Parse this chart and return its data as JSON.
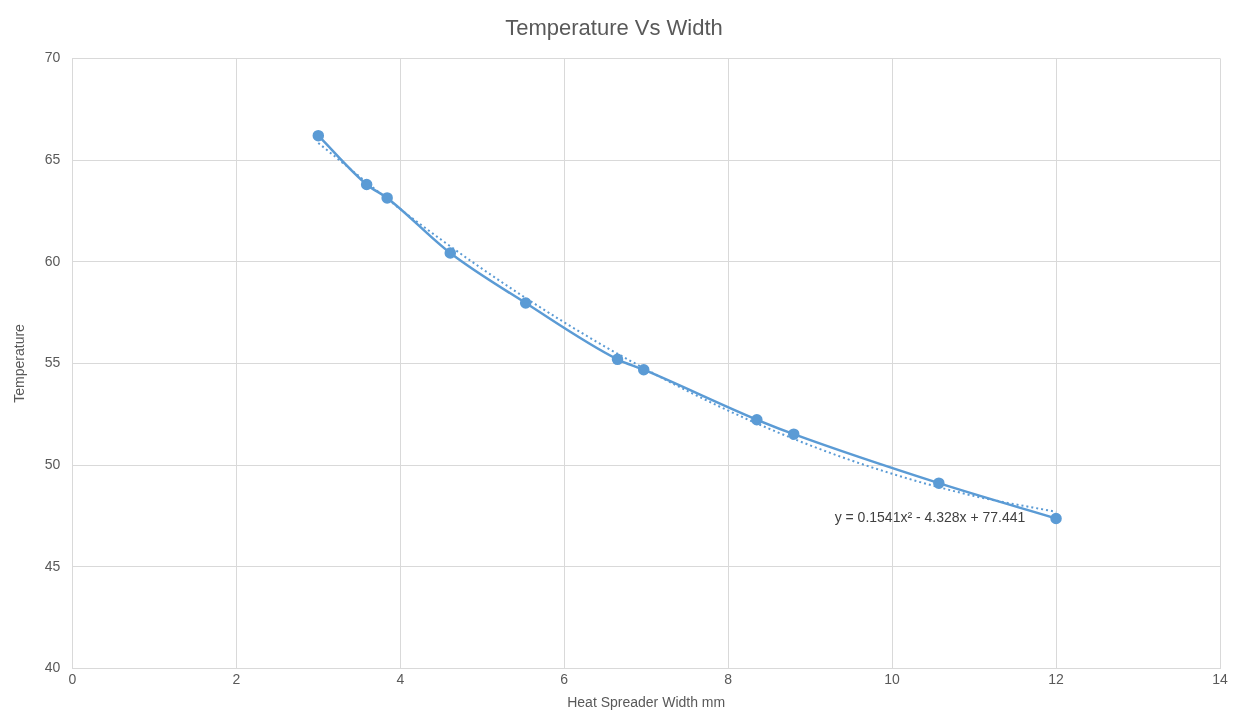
{
  "chart_data": {
    "type": "line",
    "title": "Temperature Vs Width",
    "xlabel": "Heat Spreader Width mm",
    "ylabel": "Temperature",
    "xlim": [
      0,
      14
    ],
    "xticks": [
      0,
      2,
      4,
      6,
      8,
      10,
      12,
      14
    ],
    "ylim": [
      40,
      70
    ],
    "yticks": [
      40,
      45,
      50,
      55,
      60,
      65,
      70
    ],
    "grid": true,
    "legend": false,
    "series": [
      {
        "color": "#5b9bd5",
        "marker": "circle",
        "line_style": "solid",
        "x": [
          3,
          3.59,
          3.84,
          4.61,
          5.53,
          6.65,
          6.97,
          8.35,
          8.8,
          10.57,
          12
        ],
        "values": [
          66.2,
          63.8,
          63.14,
          60.43,
          57.97,
          55.2,
          54.69,
          52.23,
          51.52,
          49.11,
          47.37
        ]
      },
      {
        "color": "#5b9bd5",
        "marker": "none",
        "line_style": "dotted",
        "x": [
          3,
          4,
          5,
          6,
          7,
          8,
          9,
          10,
          11,
          12
        ],
        "values": [
          65.84,
          62.59,
          59.65,
          57.02,
          54.7,
          52.68,
          50.97,
          49.57,
          48.48,
          47.7
        ]
      }
    ],
    "annotations": [
      "y = 0.1541x² - 4.328x + 77.441"
    ]
  }
}
